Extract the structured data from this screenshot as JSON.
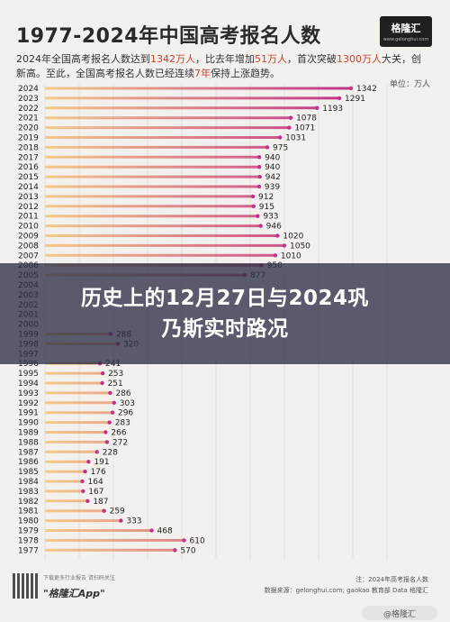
{
  "header": {
    "title": "1977-2024年中国高考报名人数",
    "subtitle_parts": [
      "2024年全国高考报名人数达到",
      "1342万人",
      "，比去年增加",
      "51万人",
      "，首次突破",
      "1300万人",
      "大关，创新高。至此，全国高考报名人数已经连续",
      "7年",
      "保持上涨趋势。"
    ],
    "unit": "单位：万人"
  },
  "logo": {
    "text": "格隆汇",
    "url": "www.gelonghui.com"
  },
  "banner": {
    "line1": "历史上的12月27日与2024巩",
    "line2": "乃斯实时路况"
  },
  "footer": {
    "left_small": "下载更多行业报告 请扫码关注",
    "app_name": "\"格隆汇App\"",
    "note": "注：2024年高考报名人数",
    "source": "数据来源：gelonghui.com; gaokao 教育部 Data 格隆汇",
    "watermark": "@格隆汇"
  },
  "colors": {
    "bar_start": "#f4c98a",
    "bar_end": "#c0338a",
    "grid": "#d9d6d2",
    "label": "#222222"
  },
  "chart_data": {
    "type": "bar",
    "orientation": "horizontal",
    "title": "1977-2024年中国高考报名人数",
    "xlabel": "",
    "ylabel": "",
    "unit": "万人",
    "categories": [
      "2024",
      "2023",
      "2022",
      "2021",
      "2020",
      "2019",
      "2018",
      "2017",
      "2016",
      "2015",
      "2014",
      "2013",
      "2012",
      "2011",
      "2010",
      "2009",
      "2008",
      "2007",
      "2006",
      "2005",
      "2004",
      "2003",
      "2002",
      "2001",
      "2000",
      "1999",
      "1998",
      "1997",
      "1996",
      "1995",
      "1994",
      "1993",
      "1992",
      "1991",
      "1990",
      "1989",
      "1988",
      "1987",
      "1986",
      "1985",
      "1984",
      "1983",
      "1982",
      "1981",
      "1980",
      "1979",
      "1978",
      "1977"
    ],
    "values": [
      1342,
      1291,
      1193,
      1078,
      1071,
      1031,
      975,
      940,
      940,
      942,
      939,
      912,
      915,
      933,
      946,
      1020,
      1050,
      1010,
      950,
      877,
      null,
      null,
      null,
      null,
      null,
      288,
      320,
      null,
      241,
      253,
      251,
      286,
      303,
      296,
      283,
      266,
      272,
      228,
      191,
      176,
      164,
      167,
      187,
      259,
      333,
      468,
      610,
      570
    ],
    "xlim": [
      0,
      1500
    ],
    "grid": true
  }
}
